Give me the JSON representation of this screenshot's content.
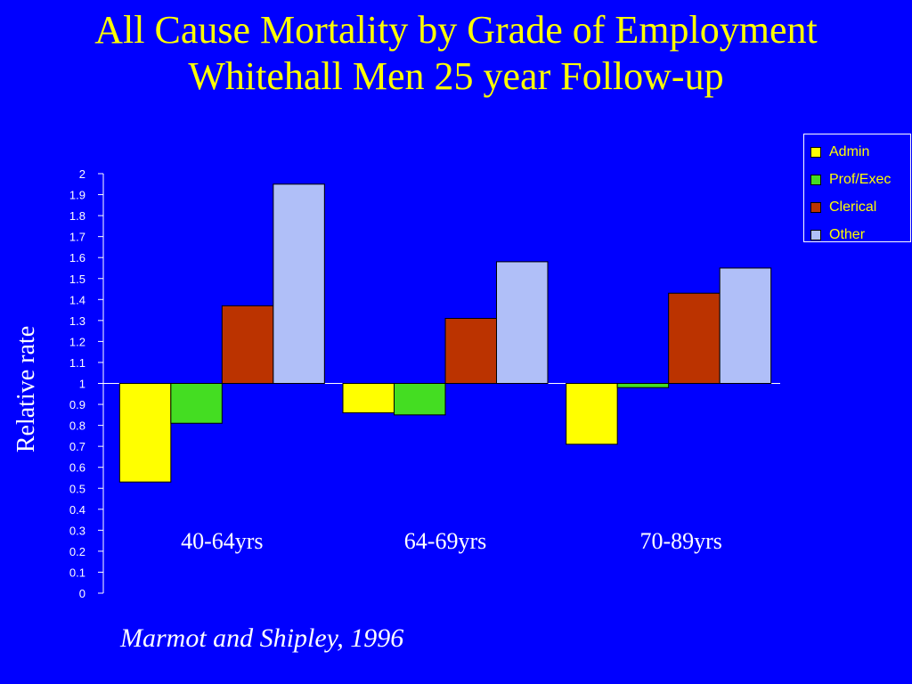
{
  "title_line1": "All Cause Mortality by Grade of Employment",
  "title_line2": "Whitehall Men 25 year Follow-up",
  "source": "Marmot and Shipley, 1996",
  "colors": {
    "background": "#0000ff",
    "title": "#ffff00",
    "text": "#ffffff",
    "Admin": "#ffff00",
    "Prof/Exec": "#44dd22",
    "Clerical": "#bb3300",
    "Other": "#b0bff8"
  },
  "chart_data": {
    "type": "bar",
    "title": "All Cause Mortality by Grade of Employment Whitehall Men 25 year Follow-up",
    "xlabel": "",
    "ylabel": "Relative rate",
    "ylim": [
      0,
      2
    ],
    "baseline": 1,
    "yticks": [
      "0",
      "0.1",
      "0.2",
      "0.3",
      "0.4",
      "0.5",
      "0.6",
      "0.7",
      "0.8",
      "0.9",
      "1",
      "1.1",
      "1.2",
      "1.3",
      "1.4",
      "1.5",
      "1.6",
      "1.7",
      "1.8",
      "1.9",
      "2"
    ],
    "categories": [
      "40-64yrs",
      "64-69yrs",
      "70-89yrs"
    ],
    "series": [
      {
        "name": "Admin",
        "values": [
          0.53,
          0.86,
          0.71
        ]
      },
      {
        "name": "Prof/Exec",
        "values": [
          0.81,
          0.85,
          0.98
        ]
      },
      {
        "name": "Clerical",
        "values": [
          1.37,
          1.31,
          1.43
        ]
      },
      {
        "name": "Other",
        "values": [
          1.95,
          1.58,
          1.55
        ]
      }
    ],
    "legend_position": "top-right",
    "grid": false
  }
}
